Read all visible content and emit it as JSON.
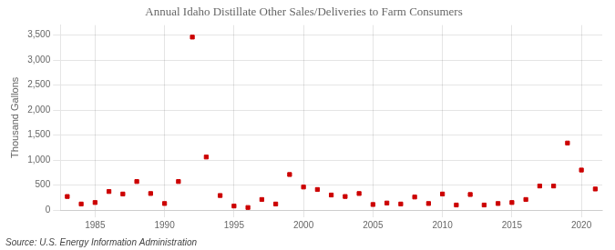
{
  "chart_data": {
    "type": "scatter",
    "title": "Annual Idaho Distillate Other Sales/Deliveries to Farm Consumers",
    "ylabel": "Thousand Gallons",
    "annotations": [
      "Source: U.S. Energy Information Administration"
    ],
    "x": [
      1983,
      1984,
      1985,
      1986,
      1987,
      1988,
      1989,
      1990,
      1991,
      1992,
      1993,
      1994,
      1995,
      1996,
      1997,
      1998,
      1999,
      2000,
      2001,
      2002,
      2003,
      2004,
      2005,
      2006,
      2007,
      2008,
      2009,
      2010,
      2011,
      2012,
      2013,
      2014,
      2015,
      2016,
      2017,
      2018,
      2019,
      2020,
      2021
    ],
    "values": [
      270,
      120,
      150,
      370,
      320,
      570,
      330,
      130,
      570,
      3460,
      1060,
      290,
      80,
      50,
      210,
      120,
      710,
      460,
      410,
      300,
      270,
      330,
      110,
      140,
      120,
      260,
      130,
      320,
      100,
      310,
      100,
      130,
      150,
      210,
      480,
      480,
      1340,
      800,
      420
    ],
    "color": "#cc0000",
    "marker": "square",
    "xlim": [
      1982.5,
      2021.5
    ],
    "xticks": [
      1985,
      1990,
      1995,
      2000,
      2005,
      2010,
      2015,
      2020
    ],
    "ylim": [
      0,
      3700
    ],
    "yticks": [
      0,
      500,
      {
        "value": 1000,
        "label": "1,000"
      },
      {
        "value": 1500,
        "label": "1,500"
      },
      {
        "value": 2000,
        "label": "2,000"
      },
      {
        "value": 2500,
        "label": "2,500"
      },
      {
        "value": 3000,
        "label": "3,000"
      },
      {
        "value": 3500,
        "label": "3,500"
      }
    ],
    "grid": true
  }
}
